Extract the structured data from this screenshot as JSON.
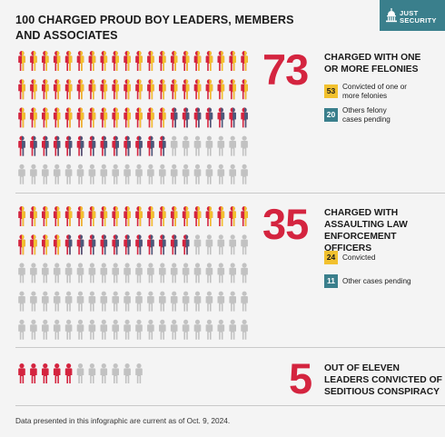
{
  "title": "100 CHARGED PROUD BOY LEADERS, MEMBERS AND ASSOCIATES",
  "logo": {
    "line1": "JUST",
    "line2": "SECURITY",
    "icon": "capitol-dome-icon"
  },
  "colors": {
    "red": "#d4243f",
    "yellow": "#f2c12e",
    "teal": "#3a7f8c",
    "navy": "#4a5a7c",
    "gray": "#c2c2c2"
  },
  "chart_data": [
    {
      "type": "pictograph",
      "total": 100,
      "highlight_value": 73,
      "heading": "CHARGED WITH ONE OR MORE FELONIES",
      "legend": [
        {
          "value": 53,
          "label": "Convicted of one or more felonies",
          "color": "yellow"
        },
        {
          "value": 20,
          "label": "Others felony cases pending",
          "color": "teal"
        }
      ]
    },
    {
      "type": "pictograph",
      "total": 100,
      "highlight_value": 35,
      "heading": "CHARGED WITH ASSAULTING LAW ENFORCEMENT OFFICERS",
      "legend": [
        {
          "value": 24,
          "label": "Convicted",
          "color": "yellow"
        },
        {
          "value": 11,
          "label": "Other cases pending",
          "color": "teal"
        }
      ]
    },
    {
      "type": "pictograph",
      "total": 11,
      "highlight_value": 5,
      "heading": "OUT OF ELEVEN LEADERS CONVICTED OF SEDITIOUS CONSPIRACY",
      "legend": []
    }
  ],
  "footnote": "Data presented in this infographic are current as of Oct. 9, 2024."
}
